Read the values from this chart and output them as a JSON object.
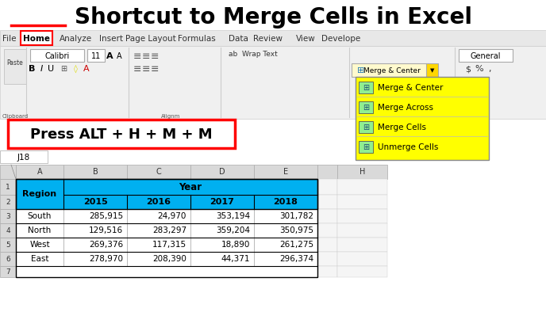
{
  "title": "Shortcut to Merge Cells in Excel",
  "title_color": "#000000",
  "title_underline_color": "#FF0000",
  "bg_color": "#FFFFFF",
  "ribbon_tabs": [
    "File",
    "Home",
    "Analyze",
    "Insert",
    "Page Layout",
    "Formulas",
    "Data",
    "Review",
    "View",
    "Develope"
  ],
  "toolbar_font": "Calibri",
  "toolbar_font_size": "11",
  "merge_dropdown_items": [
    "Merge & Center",
    "Merge Across",
    "Merge Cells",
    "Unmerge Cells"
  ],
  "merge_dropdown_bg": "#FFFF00",
  "press_text": "Press ALT + H + M + M",
  "press_box_border": "#FF0000",
  "cell_ref": "J18",
  "spreadsheet_header_bg": "#00B0F0",
  "col_headers": [
    "A",
    "B",
    "C",
    "D",
    "E",
    "",
    "H"
  ],
  "row_numbers": [
    "1",
    "2",
    "3",
    "4",
    "5",
    "6",
    "7"
  ],
  "year_label": "Year",
  "region_label": "Region",
  "year_columns": [
    "2015",
    "2016",
    "2017",
    "2018"
  ],
  "table_data": [
    [
      "South",
      "285,915",
      "24,970",
      "353,194",
      "301,782"
    ],
    [
      "North",
      "129,516",
      "283,297",
      "359,204",
      "350,975"
    ],
    [
      "West",
      "269,376",
      "117,315",
      "18,890",
      "261,275"
    ],
    [
      "East",
      "278,970",
      "208,390",
      "44,371",
      "296,374"
    ]
  ]
}
